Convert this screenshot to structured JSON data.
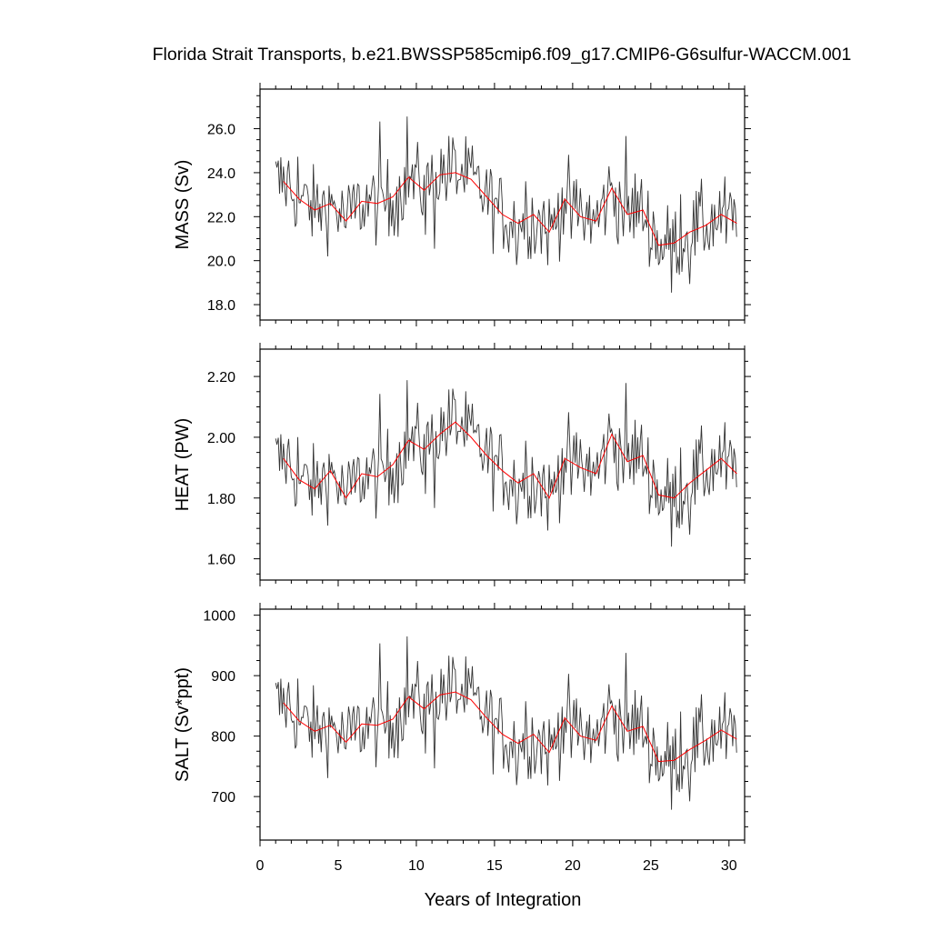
{
  "title": "Florida Strait Transports, b.e21.BWSSP585cmip6.f09_g17.CMIP6-G6sulfur-WACCM.001",
  "xlabel": "Years of Integration",
  "colors": {
    "monthly": "#333333",
    "annual": "#ff0000",
    "axes": "#000000"
  },
  "chart_data": [
    {
      "type": "line",
      "title": "",
      "xlabel": "Years of Integration",
      "ylabel": "MASS (Sv)",
      "xlim": [
        0,
        31
      ],
      "ylim": [
        17.3,
        27.8
      ],
      "xticks": [
        0,
        5,
        10,
        15,
        20,
        25,
        30
      ],
      "yticks": [
        18.0,
        20.0,
        22.0,
        24.0,
        26.0
      ],
      "ytick_labels": [
        "18.0",
        "20.0",
        "22.0",
        "24.0",
        "26.0"
      ],
      "monthly_count": 355,
      "monthly_x_start": 1.0,
      "monthly_x_step": 0.0833,
      "series": [
        {
          "name": "",
          "color": "#ff0000",
          "x": [
            1.5,
            2.5,
            3.5,
            4.5,
            5.5,
            6.5,
            7.5,
            8.5,
            9.5,
            10.5,
            11.5,
            12.5,
            13.5,
            14.5,
            15.5,
            16.5,
            17.5,
            18.5,
            19.5,
            20.5,
            21.5,
            22.5,
            23.5,
            24.5,
            25.5,
            26.5,
            27.5,
            28.5,
            29.5,
            30.5
          ],
          "values": [
            23.6,
            22.8,
            22.3,
            22.6,
            21.8,
            22.7,
            22.6,
            22.9,
            23.8,
            23.2,
            23.9,
            24.0,
            23.7,
            22.9,
            22.1,
            21.7,
            22.1,
            21.3,
            22.8,
            22.0,
            21.8,
            23.3,
            22.1,
            22.3,
            20.7,
            20.8,
            21.3,
            21.6,
            22.1,
            21.7
          ]
        }
      ]
    },
    {
      "type": "line",
      "title": "",
      "xlabel": "Years of Integration",
      "ylabel": "HEAT (PW)",
      "xlim": [
        0,
        31
      ],
      "ylim": [
        1.53,
        2.29
      ],
      "xticks": [
        0,
        5,
        10,
        15,
        20,
        25,
        30
      ],
      "yticks": [
        1.6,
        1.8,
        2.0,
        2.2
      ],
      "ytick_labels": [
        "1.60",
        "1.80",
        "2.00",
        "2.20"
      ],
      "monthly_count": 355,
      "monthly_x_start": 1.0,
      "monthly_x_step": 0.0833,
      "series": [
        {
          "name": "",
          "color": "#ff0000",
          "x": [
            1.5,
            2.5,
            3.5,
            4.5,
            5.5,
            6.5,
            7.5,
            8.5,
            9.5,
            10.5,
            11.5,
            12.5,
            13.5,
            14.5,
            15.5,
            16.5,
            17.5,
            18.5,
            19.5,
            20.5,
            21.5,
            22.5,
            23.5,
            24.5,
            25.5,
            26.5,
            27.5,
            28.5,
            29.5,
            30.5
          ],
          "values": [
            1.93,
            1.86,
            1.83,
            1.89,
            1.8,
            1.88,
            1.87,
            1.91,
            1.99,
            1.96,
            2.01,
            2.05,
            2.0,
            1.94,
            1.89,
            1.85,
            1.88,
            1.8,
            1.93,
            1.9,
            1.88,
            2.01,
            1.92,
            1.94,
            1.81,
            1.8,
            1.85,
            1.89,
            1.93,
            1.88
          ]
        }
      ]
    },
    {
      "type": "line",
      "title": "",
      "xlabel": "Years of Integration",
      "ylabel": "SALT (Sv*ppt)",
      "xlim": [
        0,
        31
      ],
      "ylim": [
        628,
        1010
      ],
      "xticks": [
        0,
        5,
        10,
        15,
        20,
        25,
        30
      ],
      "yticks": [
        700,
        800,
        900,
        1000
      ],
      "ytick_labels": [
        "700",
        "800",
        "900",
        "1000"
      ],
      "monthly_count": 355,
      "monthly_x_start": 1.0,
      "monthly_x_step": 0.0833,
      "series": [
        {
          "name": "",
          "color": "#ff0000",
          "x": [
            1.5,
            2.5,
            3.5,
            4.5,
            5.5,
            6.5,
            7.5,
            8.5,
            9.5,
            10.5,
            11.5,
            12.5,
            13.5,
            14.5,
            15.5,
            16.5,
            17.5,
            18.5,
            19.5,
            20.5,
            21.5,
            22.5,
            23.5,
            24.5,
            25.5,
            26.5,
            27.5,
            28.5,
            29.5,
            30.5
          ],
          "values": [
            855,
            825,
            808,
            818,
            790,
            820,
            818,
            828,
            865,
            845,
            868,
            873,
            860,
            830,
            803,
            788,
            803,
            773,
            830,
            800,
            793,
            850,
            808,
            816,
            758,
            760,
            778,
            793,
            810,
            795
          ]
        }
      ]
    }
  ]
}
